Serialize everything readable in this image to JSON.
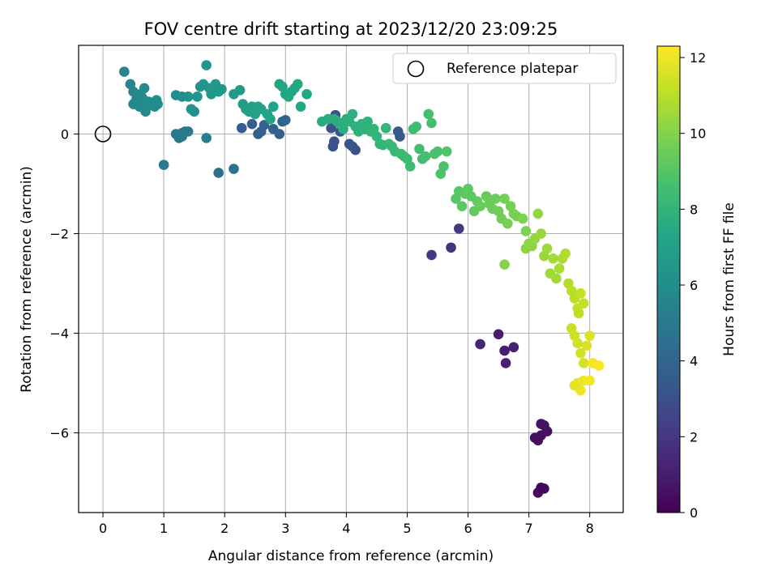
{
  "chart_data": {
    "type": "scatter",
    "title": "FOV centre drift starting at 2023/12/20 23:09:25",
    "xlabel": "Angular distance from reference (arcmin)",
    "ylabel": "Rotation from reference (arcmin)",
    "xlim": [
      -0.4,
      8.55
    ],
    "ylim": [
      -7.6,
      1.78
    ],
    "x_ticks": [
      0,
      1,
      2,
      3,
      4,
      5,
      6,
      7,
      8
    ],
    "y_ticks": [
      0,
      -2,
      -4,
      -6
    ],
    "grid": true,
    "legend": {
      "position": "top-right",
      "label": "Reference platepar"
    },
    "reference_point": {
      "x": 0,
      "y": 0
    },
    "colorbar": {
      "label": "Hours from first FF file",
      "range": [
        0,
        12.3
      ],
      "ticks": [
        0,
        2,
        4,
        6,
        8,
        10,
        12
      ],
      "colormap": "viridis"
    },
    "series": [
      {
        "points": [
          [
            7.2,
            -7.1,
            0.2
          ],
          [
            7.25,
            -7.12,
            0.2
          ],
          [
            7.15,
            -7.2,
            0.3
          ],
          [
            7.1,
            -6.1,
            0.4
          ],
          [
            7.15,
            -6.15,
            0.4
          ],
          [
            7.2,
            -6.05,
            0.5
          ],
          [
            7.3,
            -5.97,
            0.5
          ],
          [
            7.2,
            -5.82,
            0.6
          ],
          [
            7.25,
            -5.85,
            0.6
          ],
          [
            6.5,
            -4.02,
            1.0
          ],
          [
            6.6,
            -4.35,
            1.0
          ],
          [
            6.62,
            -4.6,
            1.1
          ],
          [
            6.75,
            -4.28,
            1.1
          ],
          [
            6.2,
            -4.22,
            1.2
          ],
          [
            5.72,
            -2.28,
            1.8
          ],
          [
            5.4,
            -2.43,
            2.0
          ],
          [
            5.85,
            -1.9,
            2.0
          ],
          [
            3.78,
            -0.25,
            3.0
          ],
          [
            3.8,
            -0.15,
            3.0
          ],
          [
            3.82,
            0.38,
            3.0
          ],
          [
            4.05,
            -0.2,
            3.1
          ],
          [
            4.1,
            -0.25,
            3.1
          ],
          [
            4.15,
            -0.32,
            3.2
          ],
          [
            3.75,
            0.12,
            3.2
          ],
          [
            3.9,
            0.05,
            3.3
          ],
          [
            4.85,
            0.05,
            3.4
          ],
          [
            4.88,
            -0.05,
            3.4
          ],
          [
            2.28,
            0.12,
            3.6
          ],
          [
            2.45,
            0.2,
            3.7
          ],
          [
            2.55,
            0.0,
            3.7
          ],
          [
            2.6,
            0.05,
            3.8
          ],
          [
            2.65,
            0.18,
            3.8
          ],
          [
            2.8,
            0.1,
            3.9
          ],
          [
            2.9,
            0.0,
            3.9
          ],
          [
            2.95,
            0.25,
            4.0
          ],
          [
            3.0,
            0.28,
            4.0
          ],
          [
            1.9,
            -0.78,
            4.5
          ],
          [
            2.15,
            -0.7,
            4.6
          ],
          [
            1.2,
            0.0,
            4.8
          ],
          [
            1.3,
            0.02,
            4.8
          ],
          [
            1.35,
            0.05,
            4.9
          ],
          [
            1.25,
            -0.08,
            4.9
          ],
          [
            1.4,
            0.05,
            5.0
          ],
          [
            1.3,
            -0.05,
            5.0
          ],
          [
            1.0,
            -0.62,
            5.1
          ],
          [
            1.7,
            -0.08,
            5.2
          ],
          [
            0.35,
            1.25,
            5.5
          ],
          [
            0.45,
            1.0,
            5.5
          ],
          [
            0.5,
            0.85,
            5.6
          ],
          [
            0.5,
            0.6,
            5.6
          ],
          [
            0.55,
            0.7,
            5.6
          ],
          [
            0.6,
            0.65,
            5.7
          ],
          [
            0.6,
            0.55,
            5.7
          ],
          [
            0.62,
            0.8,
            5.7
          ],
          [
            0.65,
            0.72,
            5.8
          ],
          [
            0.68,
            0.92,
            5.8
          ],
          [
            0.7,
            0.45,
            5.8
          ],
          [
            0.72,
            0.55,
            5.9
          ],
          [
            0.75,
            0.65,
            5.9
          ],
          [
            0.8,
            0.62,
            5.9
          ],
          [
            0.85,
            0.55,
            5.9
          ],
          [
            0.88,
            0.68,
            6.0
          ],
          [
            0.9,
            0.6,
            6.0
          ],
          [
            1.2,
            0.78,
            6.1
          ],
          [
            1.3,
            0.75,
            6.1
          ],
          [
            1.4,
            0.75,
            6.2
          ],
          [
            1.45,
            0.5,
            6.2
          ],
          [
            1.5,
            0.45,
            6.2
          ],
          [
            1.55,
            0.75,
            6.3
          ],
          [
            1.6,
            0.95,
            6.3
          ],
          [
            1.65,
            1.0,
            6.4
          ],
          [
            1.7,
            1.38,
            6.4
          ],
          [
            1.75,
            0.92,
            6.5
          ],
          [
            1.78,
            0.8,
            6.5
          ],
          [
            1.85,
            1.0,
            6.5
          ],
          [
            1.9,
            0.85,
            6.6
          ],
          [
            1.95,
            0.9,
            6.6
          ],
          [
            2.15,
            0.8,
            6.7
          ],
          [
            2.25,
            0.88,
            6.7
          ],
          [
            2.3,
            0.6,
            6.8
          ],
          [
            2.35,
            0.5,
            6.8
          ],
          [
            2.4,
            0.45,
            6.9
          ],
          [
            2.45,
            0.55,
            6.9
          ],
          [
            2.5,
            0.4,
            7.0
          ],
          [
            2.55,
            0.55,
            7.0
          ],
          [
            2.6,
            0.5,
            7.0
          ],
          [
            2.7,
            0.4,
            7.1
          ],
          [
            2.75,
            0.3,
            7.1
          ],
          [
            2.8,
            0.55,
            7.1
          ],
          [
            2.9,
            1.0,
            7.2
          ],
          [
            2.95,
            0.95,
            7.2
          ],
          [
            3.0,
            0.8,
            7.2
          ],
          [
            3.05,
            0.75,
            7.3
          ],
          [
            3.1,
            0.85,
            7.3
          ],
          [
            3.15,
            0.92,
            7.3
          ],
          [
            3.2,
            1.0,
            7.4
          ],
          [
            3.25,
            0.55,
            7.4
          ],
          [
            3.35,
            0.8,
            7.4
          ],
          [
            3.6,
            0.25,
            7.6
          ],
          [
            3.7,
            0.3,
            7.6
          ],
          [
            3.8,
            0.3,
            7.6
          ],
          [
            3.85,
            0.25,
            7.7
          ],
          [
            3.9,
            0.2,
            7.7
          ],
          [
            3.95,
            0.1,
            7.7
          ],
          [
            4.0,
            0.3,
            7.7
          ],
          [
            4.05,
            0.25,
            7.8
          ],
          [
            4.1,
            0.4,
            7.8
          ],
          [
            4.15,
            0.15,
            7.8
          ],
          [
            4.2,
            0.05,
            7.8
          ],
          [
            4.25,
            0.2,
            7.9
          ],
          [
            4.3,
            0.1,
            7.9
          ],
          [
            4.35,
            0.25,
            7.9
          ],
          [
            4.4,
            0.05,
            8.0
          ],
          [
            4.45,
            0.1,
            8.0
          ],
          [
            4.5,
            -0.05,
            8.0
          ],
          [
            4.55,
            -0.2,
            8.1
          ],
          [
            4.6,
            -0.22,
            8.1
          ],
          [
            4.65,
            0.12,
            8.1
          ],
          [
            4.7,
            -0.2,
            8.2
          ],
          [
            4.75,
            -0.25,
            8.2
          ],
          [
            4.8,
            -0.35,
            8.2
          ],
          [
            4.9,
            -0.4,
            8.3
          ],
          [
            4.95,
            -0.45,
            8.3
          ],
          [
            5.0,
            -0.5,
            8.4
          ],
          [
            5.05,
            -0.65,
            8.4
          ],
          [
            5.1,
            0.1,
            8.4
          ],
          [
            5.15,
            0.15,
            8.5
          ],
          [
            5.2,
            -0.3,
            8.5
          ],
          [
            5.25,
            -0.5,
            8.5
          ],
          [
            5.3,
            -0.45,
            8.6
          ],
          [
            5.35,
            0.4,
            8.6
          ],
          [
            5.4,
            0.22,
            8.6
          ],
          [
            5.45,
            -0.4,
            8.7
          ],
          [
            5.5,
            -0.35,
            8.7
          ],
          [
            5.55,
            -0.8,
            8.8
          ],
          [
            5.6,
            -0.65,
            8.8
          ],
          [
            5.65,
            -0.35,
            8.9
          ],
          [
            5.8,
            -1.3,
            9.0
          ],
          [
            5.85,
            -1.15,
            9.0
          ],
          [
            5.9,
            -1.45,
            9.1
          ],
          [
            5.95,
            -1.2,
            9.1
          ],
          [
            6.0,
            -1.1,
            9.2
          ],
          [
            6.05,
            -1.25,
            9.2
          ],
          [
            6.1,
            -1.55,
            9.3
          ],
          [
            6.15,
            -1.35,
            9.3
          ],
          [
            6.2,
            -1.45,
            9.4
          ],
          [
            6.3,
            -1.25,
            9.4
          ],
          [
            6.35,
            -1.4,
            9.5
          ],
          [
            6.4,
            -1.5,
            9.5
          ],
          [
            6.45,
            -1.3,
            9.5
          ],
          [
            6.5,
            -1.55,
            9.6
          ],
          [
            6.55,
            -1.7,
            9.6
          ],
          [
            6.6,
            -1.3,
            9.7
          ],
          [
            6.65,
            -1.8,
            9.7
          ],
          [
            6.7,
            -1.45,
            9.7
          ],
          [
            6.75,
            -1.6,
            9.8
          ],
          [
            6.8,
            -1.65,
            9.8
          ],
          [
            6.9,
            -1.7,
            9.9
          ],
          [
            6.95,
            -1.95,
            9.9
          ],
          [
            6.6,
            -2.62,
            10.0
          ],
          [
            6.95,
            -2.3,
            10.1
          ],
          [
            7.0,
            -2.2,
            10.2
          ],
          [
            7.05,
            -2.25,
            10.2
          ],
          [
            7.1,
            -2.1,
            10.3
          ],
          [
            7.15,
            -1.6,
            10.3
          ],
          [
            7.2,
            -2.0,
            10.4
          ],
          [
            7.25,
            -2.45,
            10.4
          ],
          [
            7.3,
            -2.3,
            10.5
          ],
          [
            7.35,
            -2.8,
            10.5
          ],
          [
            7.4,
            -2.5,
            10.6
          ],
          [
            7.45,
            -2.9,
            10.6
          ],
          [
            7.5,
            -2.7,
            10.7
          ],
          [
            7.55,
            -2.5,
            10.7
          ],
          [
            7.6,
            -2.4,
            10.8
          ],
          [
            7.65,
            -3.0,
            10.9
          ],
          [
            7.7,
            -3.15,
            11.0
          ],
          [
            7.75,
            -3.3,
            11.0
          ],
          [
            7.8,
            -3.5,
            11.1
          ],
          [
            7.82,
            -3.6,
            11.1
          ],
          [
            7.85,
            -3.2,
            11.2
          ],
          [
            7.9,
            -3.4,
            11.2
          ],
          [
            7.7,
            -3.9,
            11.3
          ],
          [
            7.75,
            -4.05,
            11.4
          ],
          [
            7.8,
            -4.2,
            11.4
          ],
          [
            7.85,
            -4.4,
            11.5
          ],
          [
            7.9,
            -4.6,
            11.5
          ],
          [
            7.95,
            -4.25,
            11.6
          ],
          [
            8.0,
            -4.05,
            11.7
          ],
          [
            7.75,
            -5.05,
            11.8
          ],
          [
            7.8,
            -5.0,
            11.9
          ],
          [
            7.85,
            -5.15,
            12.0
          ],
          [
            7.9,
            -4.95,
            12.0
          ],
          [
            8.0,
            -4.95,
            12.1
          ],
          [
            8.15,
            -4.65,
            12.2
          ],
          [
            8.05,
            -4.6,
            12.2
          ]
        ]
      }
    ]
  }
}
